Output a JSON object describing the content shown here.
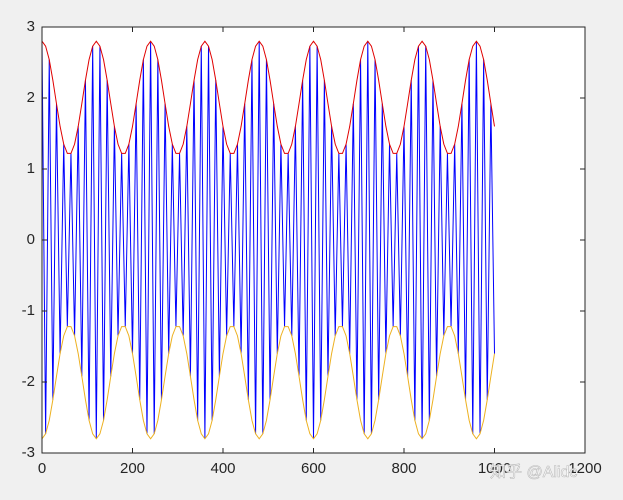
{
  "chart_data": {
    "type": "line",
    "x": [
      0,
      8,
      16,
      24,
      32,
      40,
      48,
      56,
      64,
      72,
      80,
      88,
      96,
      104,
      112,
      120,
      128,
      136,
      144,
      152,
      160,
      168,
      176,
      184,
      192,
      200,
      208,
      216,
      224,
      232,
      240,
      248,
      256,
      264,
      272,
      280,
      288,
      296,
      304,
      312,
      320,
      328,
      336,
      344,
      352,
      360,
      368,
      376,
      384,
      392,
      400,
      408,
      416,
      424,
      432,
      440,
      448,
      456,
      464,
      472,
      480,
      488,
      496,
      504,
      512,
      520,
      528,
      536,
      544,
      552,
      560,
      568,
      576,
      584,
      592,
      600,
      608,
      616,
      624,
      632,
      640,
      648,
      656,
      664,
      672,
      680,
      688,
      696,
      704,
      712,
      720,
      728,
      736,
      744,
      752,
      760,
      768,
      776,
      784,
      792,
      800,
      808,
      816,
      824,
      832,
      840,
      848,
      856,
      864,
      872,
      880,
      888,
      896,
      904,
      912,
      920,
      928,
      936,
      944,
      952,
      960,
      968,
      976,
      984,
      992,
      1000
    ],
    "series": [
      {
        "color": "#0000ff",
        "values": [
          2.8,
          -2.73,
          2.54,
          -2.25,
          1.92,
          -1.6,
          1.35,
          -1.22,
          1.22,
          -1.35,
          1.6,
          -1.92,
          2.25,
          -2.54,
          2.73,
          -2.8,
          2.73,
          -2.54,
          2.25,
          -1.92,
          1.6,
          -1.35,
          1.22,
          -1.22,
          1.35,
          -1.6,
          1.92,
          -2.25,
          2.54,
          -2.73,
          2.8,
          -2.73,
          2.54,
          -2.25,
          1.92,
          -1.6,
          1.35,
          -1.22,
          1.22,
          -1.35,
          1.6,
          -1.92,
          2.25,
          -2.54,
          2.73,
          -2.8,
          2.73,
          -2.54,
          2.25,
          -1.92,
          1.6,
          -1.35,
          1.22,
          -1.22,
          1.35,
          -1.6,
          1.92,
          -2.25,
          2.54,
          -2.73,
          2.8,
          -2.73,
          2.54,
          -2.25,
          1.92,
          -1.6,
          1.35,
          -1.22,
          1.22,
          -1.35,
          1.6,
          -1.92,
          2.25,
          -2.54,
          2.73,
          -2.8,
          2.73,
          -2.54,
          2.25,
          -1.92,
          1.6,
          -1.35,
          1.22,
          -1.22,
          1.35,
          -1.6,
          1.92,
          -2.25,
          2.54,
          -2.73,
          2.8,
          -2.73,
          2.54,
          -2.25,
          1.92,
          -1.6,
          1.35,
          -1.22,
          1.22,
          -1.35,
          1.6,
          -1.92,
          2.25,
          -2.54,
          2.73,
          -2.8,
          2.73,
          -2.54,
          2.25,
          -1.92,
          1.6,
          -1.35,
          1.22,
          -1.22,
          1.35,
          -1.6,
          1.92,
          -2.25,
          2.54,
          -2.73,
          2.8,
          -2.73,
          2.54,
          -2.25,
          1.92,
          -1.6
        ]
      },
      {
        "color": "#e00000",
        "values": [
          2.8,
          2.73,
          2.54,
          2.25,
          1.92,
          1.6,
          1.35,
          1.22,
          1.22,
          1.35,
          1.6,
          1.92,
          2.25,
          2.54,
          2.73,
          2.8,
          2.73,
          2.54,
          2.25,
          1.92,
          1.6,
          1.35,
          1.22,
          1.22,
          1.35,
          1.6,
          1.92,
          2.25,
          2.54,
          2.73,
          2.8,
          2.73,
          2.54,
          2.25,
          1.92,
          1.6,
          1.35,
          1.22,
          1.22,
          1.35,
          1.6,
          1.92,
          2.25,
          2.54,
          2.73,
          2.8,
          2.73,
          2.54,
          2.25,
          1.92,
          1.6,
          1.35,
          1.22,
          1.22,
          1.35,
          1.6,
          1.92,
          2.25,
          2.54,
          2.73,
          2.8,
          2.73,
          2.54,
          2.25,
          1.92,
          1.6,
          1.35,
          1.22,
          1.22,
          1.35,
          1.6,
          1.92,
          2.25,
          2.54,
          2.73,
          2.8,
          2.73,
          2.54,
          2.25,
          1.92,
          1.6,
          1.35,
          1.22,
          1.22,
          1.35,
          1.6,
          1.92,
          2.25,
          2.54,
          2.73,
          2.8,
          2.73,
          2.54,
          2.25,
          1.92,
          1.6,
          1.35,
          1.22,
          1.22,
          1.35,
          1.6,
          1.92,
          2.25,
          2.54,
          2.73,
          2.8,
          2.73,
          2.54,
          2.25,
          1.92,
          1.6,
          1.35,
          1.22,
          1.22,
          1.35,
          1.6,
          1.92,
          2.25,
          2.54,
          2.73,
          2.8,
          2.73,
          2.54,
          2.25,
          1.92,
          1.6
        ]
      },
      {
        "color": "#edb120",
        "values": [
          -2.8,
          -2.73,
          -2.54,
          -2.25,
          -1.92,
          -1.6,
          -1.35,
          -1.22,
          -1.22,
          -1.35,
          -1.6,
          -1.92,
          -2.25,
          -2.54,
          -2.73,
          -2.8,
          -2.73,
          -2.54,
          -2.25,
          -1.92,
          -1.6,
          -1.35,
          -1.22,
          -1.22,
          -1.35,
          -1.6,
          -1.92,
          -2.25,
          -2.54,
          -2.73,
          -2.8,
          -2.73,
          -2.54,
          -2.25,
          -1.92,
          -1.6,
          -1.35,
          -1.22,
          -1.22,
          -1.35,
          -1.6,
          -1.92,
          -2.25,
          -2.54,
          -2.73,
          -2.8,
          -2.73,
          -2.54,
          -2.25,
          -1.92,
          -1.6,
          -1.35,
          -1.22,
          -1.22,
          -1.35,
          -1.6,
          -1.92,
          -2.25,
          -2.54,
          -2.73,
          -2.8,
          -2.73,
          -2.54,
          -2.25,
          -1.92,
          -1.6,
          -1.35,
          -1.22,
          -1.22,
          -1.35,
          -1.6,
          -1.92,
          -2.25,
          -2.54,
          -2.73,
          -2.8,
          -2.73,
          -2.54,
          -2.25,
          -1.92,
          -1.6,
          -1.35,
          -1.22,
          -1.22,
          -1.35,
          -1.6,
          -1.92,
          -2.25,
          -2.54,
          -2.73,
          -2.8,
          -2.73,
          -2.54,
          -2.25,
          -1.92,
          -1.6,
          -1.35,
          -1.22,
          -1.22,
          -1.35,
          -1.6,
          -1.92,
          -2.25,
          -2.54,
          -2.73,
          -2.8,
          -2.73,
          -2.54,
          -2.25,
          -1.92,
          -1.6,
          -1.35,
          -1.22,
          -1.22,
          -1.35,
          -1.6,
          -1.92,
          -2.25,
          -2.54,
          -2.73,
          -2.8,
          -2.73,
          -2.54,
          -2.25,
          -1.92,
          -1.6
        ]
      }
    ],
    "xlim": [
      0,
      1200
    ],
    "xticks": [
      0,
      200,
      400,
      600,
      800,
      1000,
      1200
    ],
    "ylim": [
      -3,
      3
    ],
    "yticks": [
      -3,
      -2,
      -1,
      0,
      1,
      2,
      3
    ],
    "grid": false,
    "watermark": "知乎 @Alidc"
  }
}
